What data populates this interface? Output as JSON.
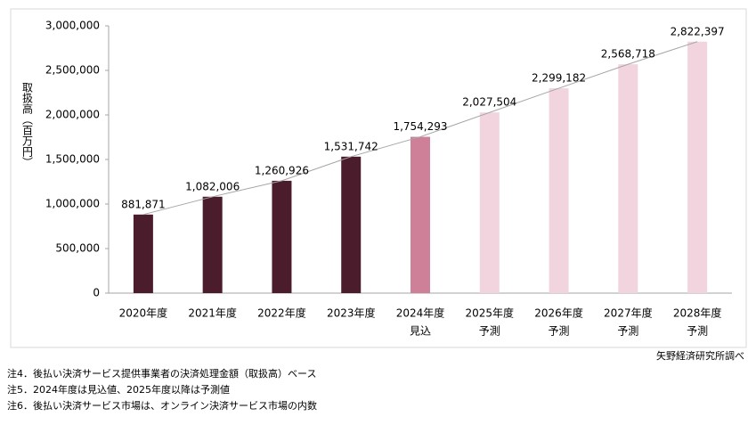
{
  "chart_data": {
    "type": "bar",
    "y_label": "取扱高（百万円）",
    "categories": [
      "2020年度",
      "2021年度",
      "2022年度",
      "2023年度",
      "2024年度",
      "2025年度",
      "2026年度",
      "2027年度",
      "2028年度"
    ],
    "category_sublabels": [
      null,
      null,
      null,
      null,
      "見込",
      "予測",
      "予測",
      "予測",
      "予測"
    ],
    "values": [
      881871,
      1082006,
      1260926,
      1531742,
      1754293,
      2027504,
      2299182,
      2568718,
      2822397
    ],
    "value_labels": [
      "881,871",
      "1,082,006",
      "1,260,926",
      "1,531,742",
      "1,754,293",
      "2,027,504",
      "2,299,182",
      "2,568,718",
      "2,822,397"
    ],
    "colors": [
      "#4b1d2c",
      "#4b1d2c",
      "#4b1d2c",
      "#4b1d2c",
      "#cd8097",
      "#f1d4dd",
      "#f1d4dd",
      "#f1d4dd",
      "#f1d4dd"
    ],
    "trend_line_color": "#a6a6a6",
    "ylim": [
      0,
      3000000
    ],
    "yticks": [
      0,
      {
        "value": 500000,
        "label": "500,000"
      },
      {
        "value": 1000000,
        "label": "1,000,000"
      },
      {
        "value": 1500000,
        "label": "1,500,000"
      },
      {
        "value": 2000000,
        "label": "2,000,000"
      },
      {
        "value": 2500000,
        "label": "2,500,000"
      },
      {
        "value": 3000000,
        "label": "3,000,000"
      }
    ],
    "source": "矢野経済研究所調べ",
    "notes": [
      "注4．後払い決済サービス提供事業者の決済処理金額（取扱高）ベース",
      "注5．2024年度は見込値、2025年度以降は予測値",
      "注6．後払い決済サービス市場は、オンライン決済サービス市場の内数"
    ]
  }
}
